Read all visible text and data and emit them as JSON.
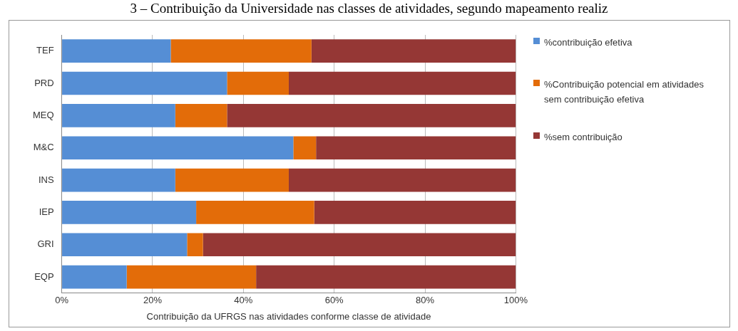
{
  "chart_data": {
    "type": "bar",
    "orientation": "horizontal",
    "stacked": true,
    "title": "3 – Contribuição da Universidade nas classes de atividades, segundo mapeamento realiz",
    "xlabel": "Contribuição da UFRGS nas atividades conforme classe de atividade",
    "categories": [
      "TEF",
      "PRD",
      "MEQ",
      "M&C",
      "INS",
      "IEP",
      "GRI",
      "EQP"
    ],
    "series": [
      {
        "name": "%contribuição efetiva",
        "color": "#558ed5",
        "values": [
          24,
          36.4,
          25,
          51,
          25,
          29.6,
          27.6,
          14.3
        ]
      },
      {
        "name": "%Contribuição potencial em atividades sem contribuição efetiva",
        "color": "#e36c09",
        "values": [
          31,
          13.6,
          11.4,
          5,
          25,
          26,
          3.5,
          28.5
        ]
      },
      {
        "name": "%sem contribuição",
        "color": "#953735",
        "values": [
          45,
          50,
          63.6,
          44,
          50,
          44.4,
          68.9,
          57.2
        ]
      }
    ],
    "xlim": [
      0,
      100
    ],
    "xticks": [
      {
        "value": 0,
        "label": "0%"
      },
      {
        "value": 20,
        "label": "20%"
      },
      {
        "value": 40,
        "label": "40%"
      },
      {
        "value": 60,
        "label": "60%"
      },
      {
        "value": 80,
        "label": "80%"
      },
      {
        "value": 100,
        "label": "100%"
      }
    ],
    "grid": "x",
    "legend": "right"
  }
}
